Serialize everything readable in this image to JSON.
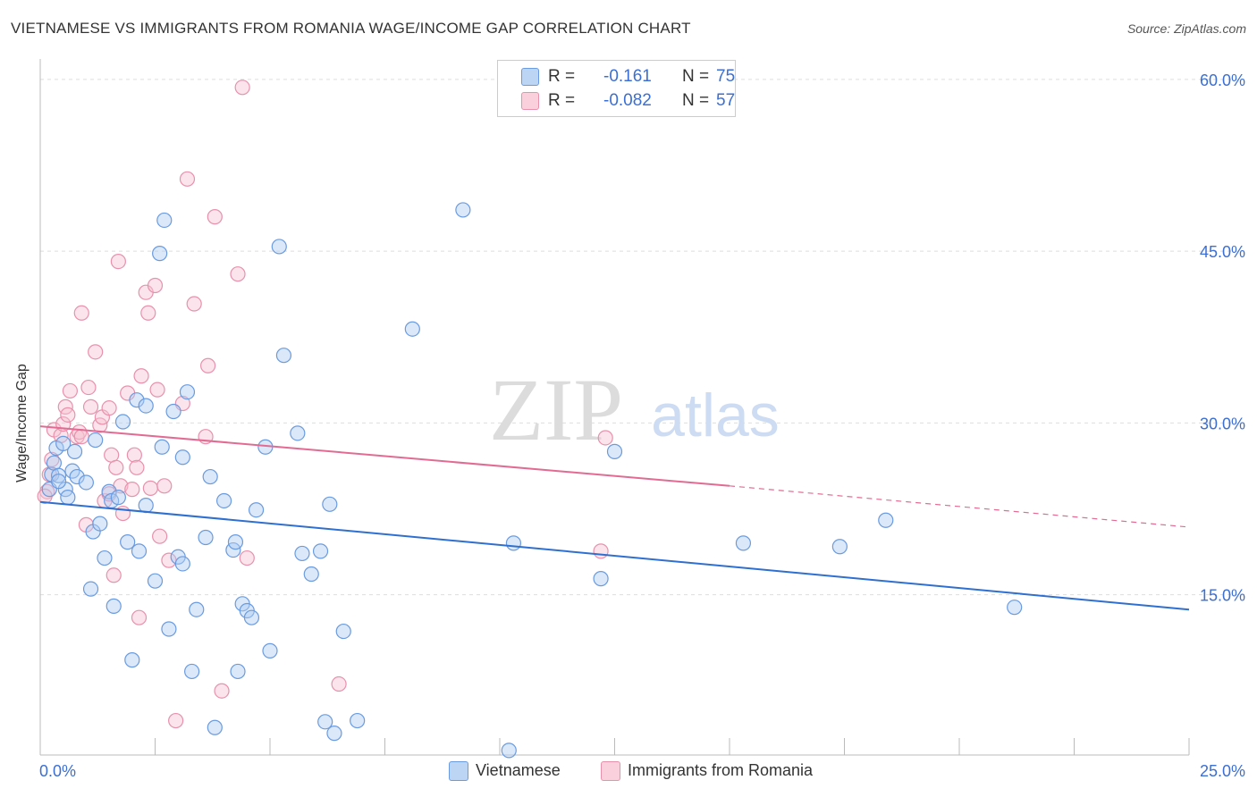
{
  "title": "VIETNAMESE VS IMMIGRANTS FROM ROMANIA WAGE/INCOME GAP CORRELATION CHART",
  "source": "Source: ZipAtlas.com",
  "watermark_zip": "ZIP",
  "watermark_atlas": "atlas",
  "legend": {
    "r_label": "R =",
    "n_label": "N =",
    "series": [
      {
        "name": "Vietnamese",
        "r": "-0.161",
        "n": "75",
        "fill": "#aecbf2",
        "stroke": "#6a9be0",
        "line": "#2f6fd0"
      },
      {
        "name": "Immigrants from Romania",
        "r": "-0.082",
        "n": "57",
        "fill": "#f7c3d3",
        "stroke": "#e891ad",
        "line": "#e26b93"
      }
    ]
  },
  "chart_data": {
    "type": "scatter",
    "title": "VIETNAMESE VS IMMIGRANTS FROM ROMANIA WAGE/INCOME GAP CORRELATION CHART",
    "xlabel": "",
    "ylabel": "Wage/Income Gap",
    "xlim": [
      0,
      25
    ],
    "ylim": [
      1,
      61
    ],
    "x_tick_labels": [
      "0.0%",
      "25.0%"
    ],
    "y_ticks": [
      15,
      30,
      45,
      60
    ],
    "y_tick_labels": [
      "15.0%",
      "30.0%",
      "45.0%",
      "60.0%"
    ],
    "series": [
      {
        "name": "Vietnamese",
        "trend": {
          "x0": 0,
          "y0": 23.1,
          "x1": 25,
          "y1": 13.7
        },
        "points": [
          [
            0.2,
            24.2
          ],
          [
            0.25,
            25.5
          ],
          [
            0.3,
            26.5
          ],
          [
            0.35,
            27.8
          ],
          [
            0.4,
            25.4
          ],
          [
            0.5,
            28.2
          ],
          [
            0.55,
            24.2
          ],
          [
            0.6,
            23.5
          ],
          [
            0.7,
            25.8
          ],
          [
            0.75,
            27.5
          ],
          [
            0.8,
            25.3
          ],
          [
            1.0,
            24.8
          ],
          [
            1.1,
            15.5
          ],
          [
            1.15,
            20.5
          ],
          [
            1.2,
            28.5
          ],
          [
            1.3,
            21.2
          ],
          [
            1.4,
            18.2
          ],
          [
            1.5,
            24.0
          ],
          [
            1.55,
            23.2
          ],
          [
            1.6,
            14.0
          ],
          [
            1.7,
            23.5
          ],
          [
            1.8,
            30.1
          ],
          [
            1.9,
            19.6
          ],
          [
            2.0,
            9.3
          ],
          [
            2.1,
            32.0
          ],
          [
            2.15,
            18.8
          ],
          [
            2.3,
            31.5
          ],
          [
            2.3,
            22.8
          ],
          [
            2.5,
            16.2
          ],
          [
            2.6,
            44.8
          ],
          [
            2.65,
            27.9
          ],
          [
            2.7,
            47.7
          ],
          [
            2.8,
            12.0
          ],
          [
            2.9,
            31.0
          ],
          [
            3.0,
            18.3
          ],
          [
            3.1,
            17.7
          ],
          [
            3.1,
            27.0
          ],
          [
            3.2,
            32.7
          ],
          [
            3.3,
            8.3
          ],
          [
            3.4,
            13.7
          ],
          [
            3.6,
            20.0
          ],
          [
            3.7,
            25.3
          ],
          [
            3.8,
            3.4
          ],
          [
            4.0,
            23.2
          ],
          [
            4.2,
            18.9
          ],
          [
            4.25,
            19.6
          ],
          [
            4.3,
            8.3
          ],
          [
            4.4,
            14.2
          ],
          [
            4.5,
            13.6
          ],
          [
            4.6,
            13.0
          ],
          [
            4.7,
            22.4
          ],
          [
            4.9,
            27.9
          ],
          [
            5.0,
            10.1
          ],
          [
            5.2,
            45.4
          ],
          [
            5.3,
            35.9
          ],
          [
            5.6,
            29.1
          ],
          [
            5.7,
            18.6
          ],
          [
            5.9,
            16.8
          ],
          [
            6.1,
            18.8
          ],
          [
            6.3,
            22.9
          ],
          [
            6.4,
            2.9
          ],
          [
            6.6,
            11.8
          ],
          [
            6.9,
            4.0
          ],
          [
            8.1,
            38.2
          ],
          [
            9.2,
            48.6
          ],
          [
            10.2,
            1.4
          ],
          [
            10.3,
            19.5
          ],
          [
            12.2,
            16.4
          ],
          [
            12.5,
            27.5
          ],
          [
            15.3,
            19.5
          ],
          [
            17.4,
            19.2
          ],
          [
            18.4,
            21.5
          ],
          [
            21.2,
            13.9
          ],
          [
            0.4,
            24.9
          ],
          [
            6.2,
            3.9
          ]
        ]
      },
      {
        "name": "Immigrants from Romania",
        "trend": {
          "x0": 0,
          "y0": 29.7,
          "x1": 15,
          "y1": 24.5,
          "dash_x1": 25,
          "dash_y1": 20.9
        },
        "points": [
          [
            0.15,
            24.0
          ],
          [
            0.2,
            25.5
          ],
          [
            0.25,
            26.8
          ],
          [
            0.3,
            29.4
          ],
          [
            0.45,
            28.9
          ],
          [
            0.5,
            29.9
          ],
          [
            0.55,
            31.4
          ],
          [
            0.6,
            30.7
          ],
          [
            0.65,
            32.8
          ],
          [
            0.8,
            28.8
          ],
          [
            0.85,
            29.2
          ],
          [
            0.9,
            28.8
          ],
          [
            0.9,
            39.6
          ],
          [
            1.0,
            21.1
          ],
          [
            1.05,
            33.1
          ],
          [
            1.1,
            31.4
          ],
          [
            1.2,
            36.2
          ],
          [
            1.3,
            29.8
          ],
          [
            1.35,
            30.5
          ],
          [
            1.4,
            23.2
          ],
          [
            1.5,
            23.8
          ],
          [
            1.5,
            31.3
          ],
          [
            1.55,
            27.2
          ],
          [
            1.6,
            16.7
          ],
          [
            1.65,
            26.1
          ],
          [
            1.7,
            44.1
          ],
          [
            1.75,
            24.5
          ],
          [
            1.8,
            22.1
          ],
          [
            1.9,
            32.6
          ],
          [
            2.0,
            24.2
          ],
          [
            2.05,
            27.2
          ],
          [
            2.1,
            26.1
          ],
          [
            2.15,
            13.0
          ],
          [
            2.2,
            34.1
          ],
          [
            2.3,
            41.4
          ],
          [
            2.35,
            39.6
          ],
          [
            2.4,
            24.3
          ],
          [
            2.5,
            42.0
          ],
          [
            2.55,
            32.9
          ],
          [
            2.6,
            20.1
          ],
          [
            2.7,
            24.5
          ],
          [
            2.8,
            18.0
          ],
          [
            2.95,
            4.0
          ],
          [
            3.1,
            31.7
          ],
          [
            3.2,
            51.3
          ],
          [
            3.35,
            40.4
          ],
          [
            3.6,
            28.8
          ],
          [
            3.65,
            35.0
          ],
          [
            3.8,
            48.0
          ],
          [
            3.95,
            6.6
          ],
          [
            4.3,
            43.0
          ],
          [
            4.4,
            59.3
          ],
          [
            4.5,
            18.2
          ],
          [
            6.5,
            7.2
          ],
          [
            12.2,
            18.8
          ],
          [
            12.3,
            28.7
          ],
          [
            0.1,
            23.6
          ]
        ]
      }
    ]
  }
}
